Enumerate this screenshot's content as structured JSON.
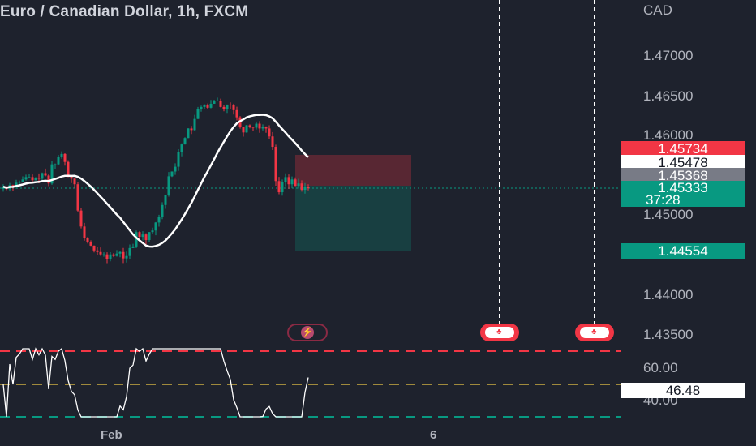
{
  "header": {
    "title": "Euro / Canadian Dollar, 1h, FXCM"
  },
  "price_axis": {
    "currency": "CAD",
    "ticks": [
      "1.47000",
      "1.46500",
      "1.46000",
      "1.45000",
      "1.44000",
      "1.43500"
    ]
  },
  "price_tags": {
    "high_level": "1.45734",
    "entry": "1.45478",
    "prev_close": "1.45368",
    "current": "1.45333",
    "countdown": "37:28",
    "target": "1.44554"
  },
  "oscillator": {
    "tick": "60.00",
    "tick_low": "40.00",
    "value": "46.48"
  },
  "time_axis": {
    "labels": [
      "Feb",
      "6"
    ]
  },
  "colors": {
    "bg": "#1e222d",
    "up": "#089981",
    "down": "#f23645",
    "ma": "#ffffff",
    "event": "#f23645"
  },
  "icons": {
    "event_flag": "canada-flag-icon",
    "lightning": "lightning-icon"
  },
  "chart_data": {
    "type": "candlestick",
    "ylim": [
      1.43,
      1.475
    ],
    "x": [
      0,
      1,
      2,
      3,
      4,
      5,
      6,
      7,
      8,
      9,
      10,
      11,
      12,
      13,
      14,
      15,
      16,
      17,
      18,
      19,
      20,
      21,
      22,
      23,
      24,
      25,
      26,
      27,
      28,
      29,
      30,
      31,
      32,
      33,
      34,
      35,
      36,
      37,
      38,
      39,
      40,
      41,
      42,
      43,
      44,
      45,
      46,
      47,
      48,
      49,
      50,
      51,
      52,
      53,
      54,
      55,
      56,
      57,
      58,
      59,
      60,
      61,
      62,
      63,
      64,
      65,
      66,
      67,
      68,
      69,
      70,
      71,
      72,
      73,
      74,
      75,
      76,
      77,
      78,
      79,
      80,
      81,
      82,
      83,
      84,
      85,
      86,
      87,
      88,
      89,
      90,
      91,
      92,
      93,
      94
    ],
    "close": [
      1.4535,
      1.4532,
      1.4537,
      1.4535,
      1.454,
      1.4541,
      1.4544,
      1.4547,
      1.4547,
      1.4543,
      1.4546,
      1.4545,
      1.4552,
      1.4549,
      1.4539,
      1.4563,
      1.4563,
      1.4572,
      1.4576,
      1.4566,
      1.4549,
      1.4545,
      1.4538,
      1.4505,
      1.4485,
      1.4471,
      1.4465,
      1.4461,
      1.4455,
      1.4453,
      1.445,
      1.445,
      1.4444,
      1.445,
      1.4448,
      1.4451,
      1.4453,
      1.4445,
      1.4448,
      1.4458,
      1.446,
      1.4478,
      1.4472,
      1.4475,
      1.4468,
      1.4478,
      1.448,
      1.449,
      1.4497,
      1.4512,
      1.4524,
      1.4548,
      1.4554,
      1.456,
      1.4578,
      1.4588,
      1.4596,
      1.4608,
      1.4606,
      1.462,
      1.4632,
      1.4635,
      1.4638,
      1.4634,
      1.4639,
      1.4643,
      1.4643,
      1.4635,
      1.4632,
      1.4638,
      1.4637,
      1.4631,
      1.4622,
      1.461,
      1.4603,
      1.4612,
      1.461,
      1.4609,
      1.4614,
      1.4608,
      1.461,
      1.4608,
      1.4598,
      1.4585,
      1.4542,
      1.4528,
      1.4541,
      1.4547,
      1.4538,
      1.4544,
      1.4536,
      1.4539,
      1.4531,
      1.4535,
      1.4533
    ],
    "event_markers": [
      "canada-flag-icon",
      "canada-flag-icon"
    ]
  }
}
